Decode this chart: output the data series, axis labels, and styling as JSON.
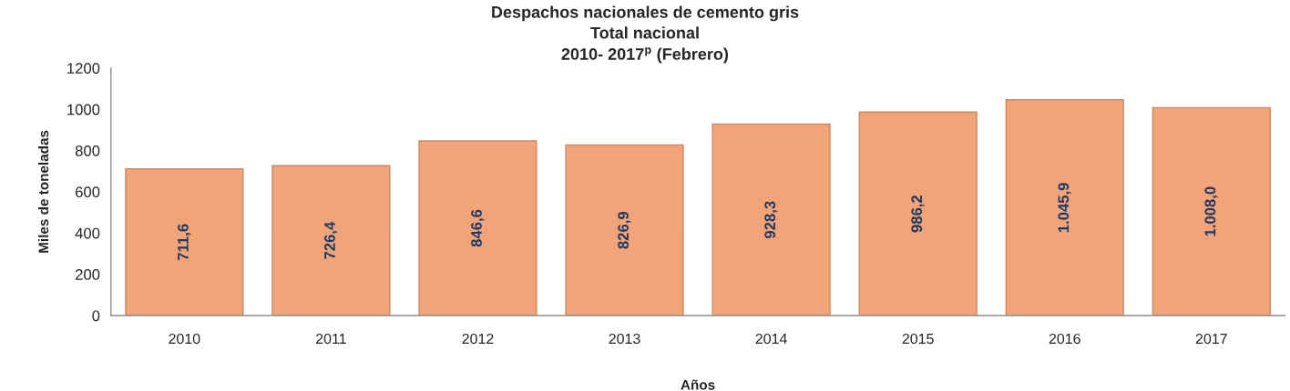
{
  "chart_data": {
    "type": "bar",
    "title": "Despachos nacionales de cemento gris\nTotal nacional\n2010- 2017$^{p}$ (Febrero)",
    "xlabel": "Años",
    "ylabel": "Miles de toneladas",
    "categories": [
      "2010",
      "2011",
      "2012",
      "2013",
      "2014",
      "2015",
      "2016",
      "2017"
    ],
    "values": [
      711.6,
      726.4,
      846.6,
      826.9,
      928.3,
      986.2,
      1045.9,
      1008.0
    ],
    "value_labels": [
      "711,6",
      "726,4",
      "846,6",
      "826,9",
      "928,3",
      "986,2",
      "1.045,9",
      "1.008,0"
    ],
    "color": "#f2a479",
    "ylim": [
      0,
      1200
    ],
    "yticks": [
      0,
      200,
      400,
      600,
      800,
      1000,
      1200
    ]
  }
}
